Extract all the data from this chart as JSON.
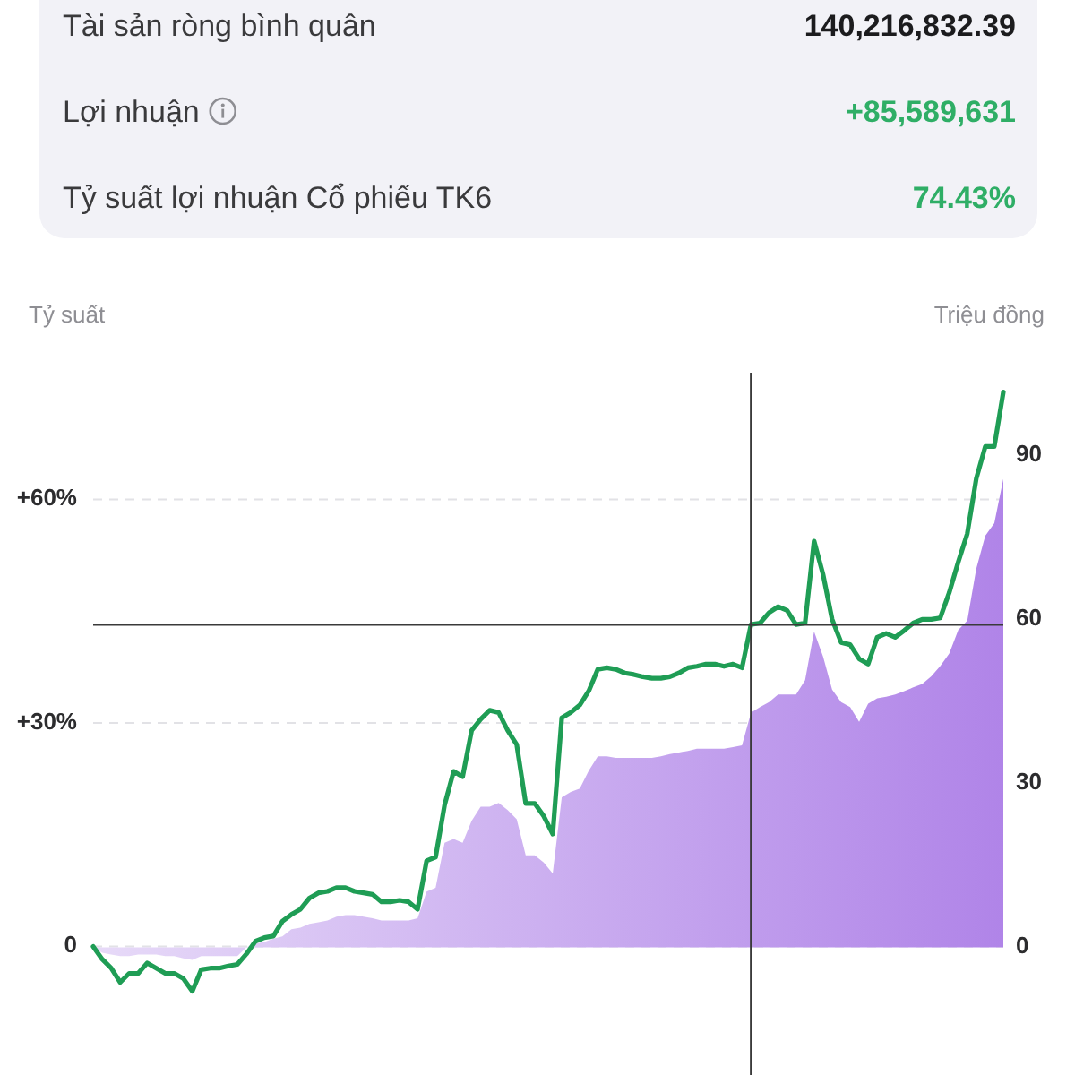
{
  "chart_data": [
    {
      "type": "other",
      "categories": [
        "Tài sản ròng bình quân",
        "Lợi nhuận",
        "Tỷ suất lợi nhuận Cổ phiếu TK6"
      ],
      "value_labels": [
        "140,216,832.39",
        "+85,589,631",
        "74.43%"
      ],
      "colors": [
        "#1c1c1e",
        "#2fae66",
        "#2fae66"
      ]
    },
    {
      "type": "line",
      "ylabel": "Tỷ suất",
      "y2label": "Triệu đồng",
      "categories": [
        null,
        null,
        null,
        null,
        null,
        null,
        null,
        null,
        null,
        null,
        null,
        null,
        null,
        null,
        null,
        null,
        null,
        null,
        null,
        null,
        null,
        null,
        null,
        null,
        null,
        null,
        null,
        null,
        null,
        null,
        null,
        null,
        null,
        null,
        null,
        null,
        null,
        null,
        null,
        null,
        null,
        null,
        null,
        null,
        null,
        null,
        null,
        null,
        null,
        null,
        null,
        null,
        null,
        null,
        null,
        null,
        null,
        null,
        null,
        null,
        null,
        null,
        null,
        null,
        null,
        null,
        null,
        null,
        null,
        null,
        null,
        null,
        null,
        null,
        null,
        null,
        null,
        null,
        null,
        null,
        null,
        null,
        null,
        null,
        null,
        null,
        null,
        null,
        null,
        null,
        null,
        null,
        null,
        null,
        null,
        null,
        null,
        null,
        null,
        null,
        null,
        null
      ],
      "series": [
        {
          "type": "area",
          "axis": "y2",
          "color": "#b084e8",
          "values": [
            0,
            -1.0,
            -1.3,
            -1.6,
            -1.6,
            -1.3,
            -1.3,
            -1.3,
            -1.6,
            -1.6,
            -2.0,
            -2.3,
            -1.6,
            -1.6,
            -1.6,
            -1.6,
            -1.6,
            0,
            0.7,
            1.0,
            1.6,
            2.0,
            3.3,
            3.6,
            4.3,
            4.6,
            4.9,
            5.6,
            5.9,
            5.9,
            5.6,
            5.3,
            4.9,
            4.9,
            4.9,
            4.9,
            5.3,
            10.2,
            10.9,
            19.1,
            19.8,
            19.1,
            23.1,
            25.7,
            25.7,
            26.4,
            25.1,
            23.4,
            16.8,
            16.8,
            15.5,
            13.5,
            27.4,
            28.4,
            29.0,
            32.3,
            34.9,
            34.9,
            34.6,
            34.6,
            34.6,
            34.6,
            34.6,
            34.9,
            35.3,
            35.6,
            35.9,
            36.3,
            36.3,
            36.3,
            36.3,
            36.6,
            36.9,
            42.9,
            43.9,
            44.8,
            46.2,
            46.2,
            46.2,
            48.8,
            57.7,
            53.1,
            47.1,
            44.8,
            43.9,
            41.2,
            44.5,
            45.5,
            45.8,
            46.2,
            46.8,
            47.5,
            48.1,
            49.5,
            51.4,
            53.7,
            58.0,
            59.7,
            69.2,
            75.2,
            77.5,
            85.6
          ]
        },
        {
          "type": "line",
          "color": "#1f9d55",
          "values": [
            0,
            -1.7,
            -2.9,
            -4.8,
            -3.6,
            -3.6,
            -2.2,
            -2.9,
            -3.6,
            -3.6,
            -4.3,
            -6.0,
            -3.1,
            -2.9,
            -2.9,
            -2.6,
            -2.4,
            -1.0,
            0.7,
            1.2,
            1.4,
            3.4,
            4.3,
            5.0,
            6.5,
            7.2,
            7.4,
            7.9,
            7.9,
            7.4,
            7.2,
            7.0,
            6.0,
            6.0,
            6.2,
            6.0,
            5.0,
            11.5,
            12.0,
            19.0,
            23.5,
            22.8,
            29.0,
            30.5,
            31.7,
            31.4,
            29.0,
            27.1,
            19.2,
            19.2,
            17.5,
            15.1,
            30.7,
            31.4,
            32.4,
            34.3,
            37.2,
            37.4,
            37.2,
            36.7,
            36.5,
            36.2,
            36.0,
            36.0,
            36.2,
            36.7,
            37.4,
            37.6,
            37.9,
            37.9,
            37.6,
            37.9,
            37.4,
            43.2,
            43.4,
            44.8,
            45.6,
            45.1,
            43.2,
            43.4,
            54.4,
            49.9,
            43.9,
            40.8,
            40.5,
            38.6,
            37.9,
            41.5,
            42.0,
            41.5,
            42.4,
            43.4,
            43.9,
            43.9,
            44.1,
            47.5,
            51.6,
            55.4,
            62.8,
            67.1,
            67.1,
            74.4
          ]
        }
      ],
      "ylim": [
        -17,
        77
      ],
      "yticks": [
        0,
        {
          "value": 30,
          "label": "+30%"
        },
        {
          "value": 60,
          "label": "+60%"
        }
      ],
      "y2lim": [
        -23,
        105
      ],
      "y2ticks": [
        0,
        30,
        60,
        90
      ],
      "grid": "y",
      "ref_lines": [
        {
          "axis": "y",
          "value": 43.2,
          "color": "#3a3a3a"
        }
      ]
    }
  ]
}
